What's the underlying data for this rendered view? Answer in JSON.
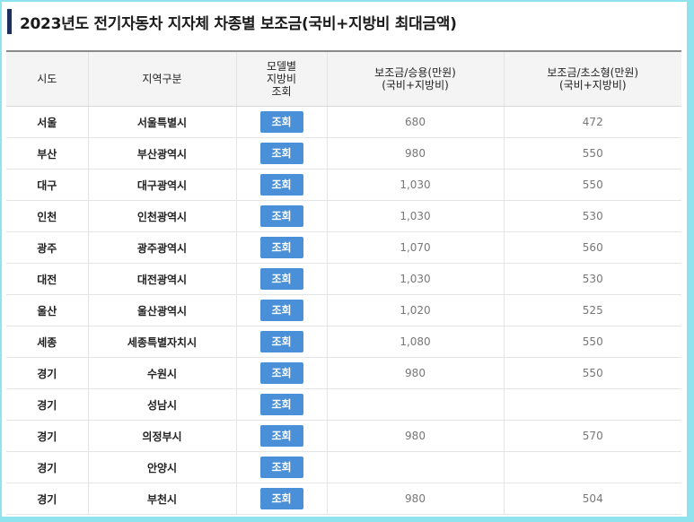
{
  "title": "2023년도 전기자동차 지자체 차종별 보조금(국비+지방비 최대금액)",
  "colors": {
    "accent_bar": "#1f2e5a",
    "button": "#4a90d9",
    "background": "#8fe3ef"
  },
  "table": {
    "headers": {
      "sido": "시도",
      "region": "지역구분",
      "lookup_line1": "모델별",
      "lookup_line2": "지방비",
      "lookup_line3": "조회",
      "passenger_line1": "보조금/승용(만원)",
      "passenger_line2": "(국비+지방비)",
      "compact_line1": "보조금/초소형(만원)",
      "compact_line2": "(국비+지방비)"
    },
    "rows": [
      {
        "sido": "서울",
        "region": "서울특별시",
        "button": "조회",
        "passenger": "680",
        "compact": "472"
      },
      {
        "sido": "부산",
        "region": "부산광역시",
        "button": "조회",
        "passenger": "980",
        "compact": "550"
      },
      {
        "sido": "대구",
        "region": "대구광역시",
        "button": "조회",
        "passenger": "1,030",
        "compact": "550"
      },
      {
        "sido": "인천",
        "region": "인천광역시",
        "button": "조회",
        "passenger": "1,030",
        "compact": "530"
      },
      {
        "sido": "광주",
        "region": "광주광역시",
        "button": "조회",
        "passenger": "1,070",
        "compact": "560"
      },
      {
        "sido": "대전",
        "region": "대전광역시",
        "button": "조회",
        "passenger": "1,030",
        "compact": "530"
      },
      {
        "sido": "울산",
        "region": "울산광역시",
        "button": "조회",
        "passenger": "1,020",
        "compact": "525"
      },
      {
        "sido": "세종",
        "region": "세종특별자치시",
        "button": "조회",
        "passenger": "1,080",
        "compact": "550"
      },
      {
        "sido": "경기",
        "region": "수원시",
        "button": "조회",
        "passenger": "980",
        "compact": "550"
      },
      {
        "sido": "경기",
        "region": "성남시",
        "button": "조회",
        "passenger": "",
        "compact": ""
      },
      {
        "sido": "경기",
        "region": "의정부시",
        "button": "조회",
        "passenger": "980",
        "compact": "570"
      },
      {
        "sido": "경기",
        "region": "안양시",
        "button": "조회",
        "passenger": "",
        "compact": ""
      },
      {
        "sido": "경기",
        "region": "부천시",
        "button": "조회",
        "passenger": "980",
        "compact": "504"
      }
    ]
  }
}
